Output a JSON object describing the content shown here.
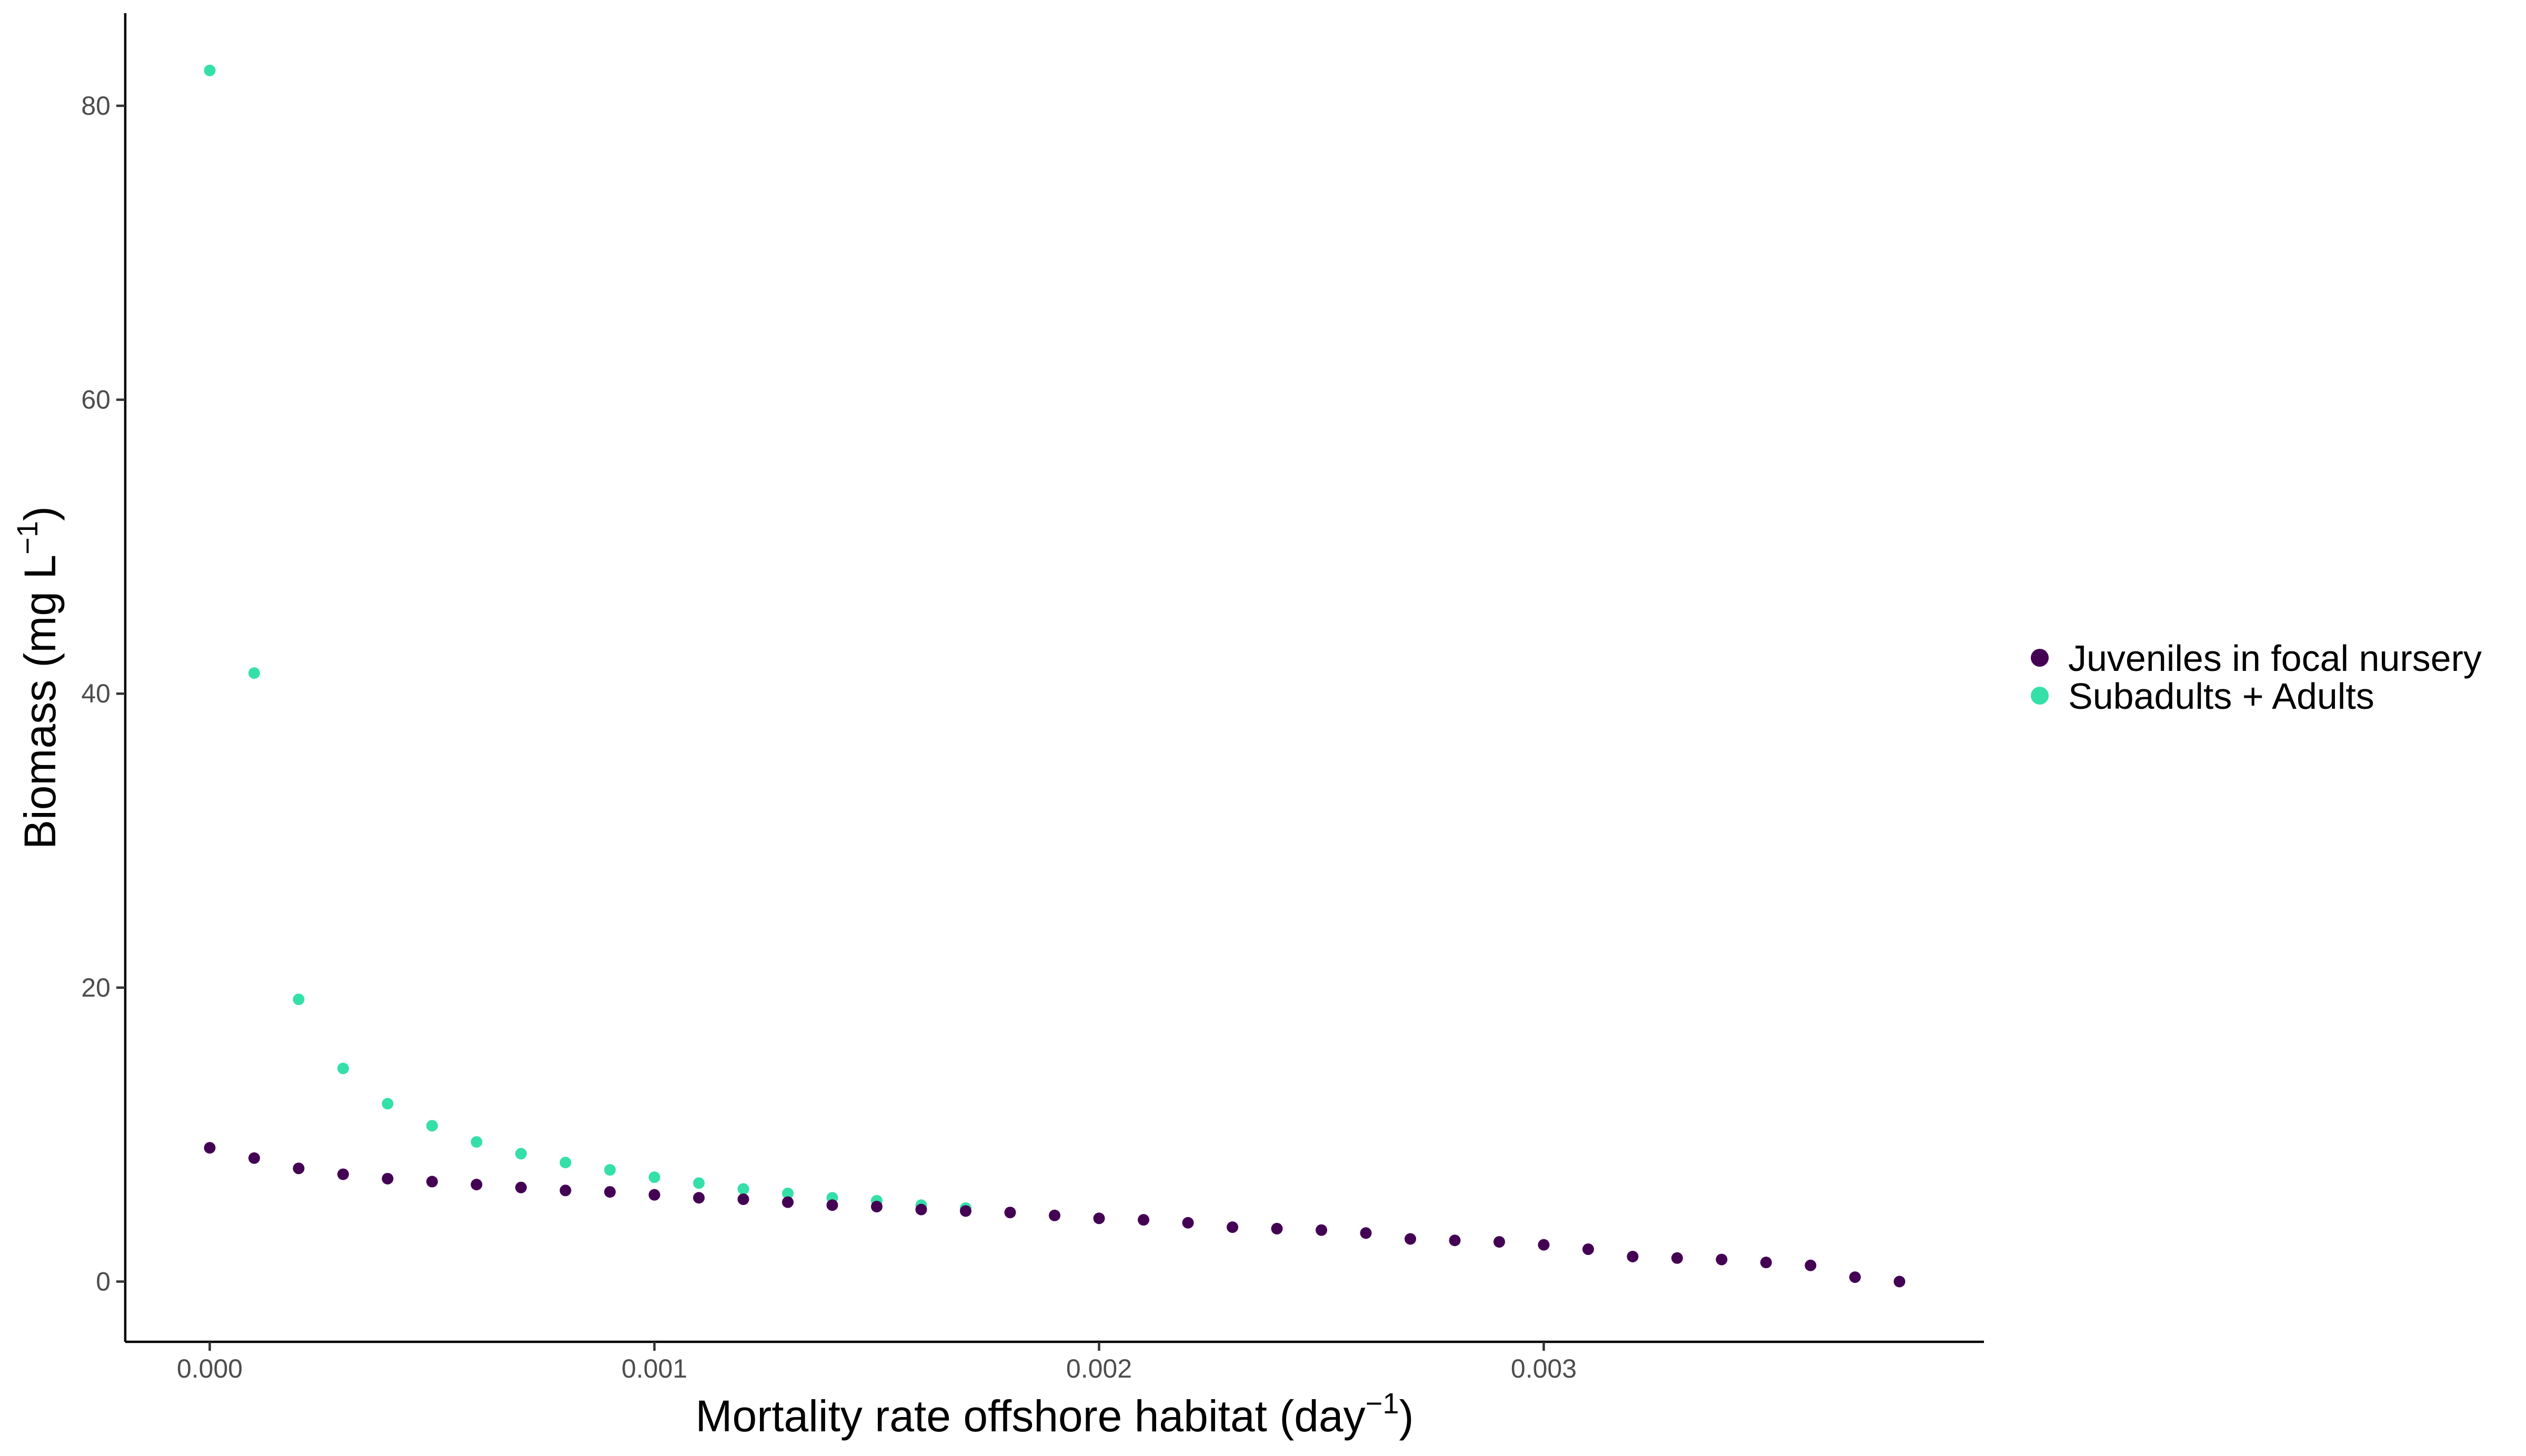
{
  "chart_data": {
    "type": "scatter",
    "xlabel": {
      "base": "Mortality rate offshore habitat (day",
      "sup": "−1",
      "close": ")"
    },
    "ylabel": {
      "base": "Biomass (mg L",
      "sup": "−1",
      "close": ")"
    },
    "xlim": [
      -0.00019,
      0.00399
    ],
    "ylim": [
      -4.1,
      86.3
    ],
    "xticks": [
      0.0,
      0.001,
      0.002,
      0.003
    ],
    "xtick_labels": [
      "0.000",
      "0.001",
      "0.002",
      "0.003"
    ],
    "yticks": [
      0,
      20,
      40,
      60,
      80
    ],
    "ytick_labels": [
      "0",
      "20",
      "40",
      "60",
      "80"
    ],
    "grid": false,
    "legend_position": "right",
    "series": [
      {
        "name": "Juveniles in focal nursery",
        "color": "#440154",
        "x": [
          0.0,
          0.0001,
          0.0002,
          0.0003,
          0.0004,
          0.0005,
          0.0006,
          0.0007,
          0.0008,
          0.0009,
          0.001,
          0.0011,
          0.0012,
          0.0013,
          0.0014,
          0.0015,
          0.0016,
          0.0017,
          0.0018,
          0.0019,
          0.002,
          0.0021,
          0.0022,
          0.0023,
          0.0024,
          0.0025,
          0.0026,
          0.0027,
          0.0028,
          0.0029,
          0.003,
          0.0031,
          0.0032,
          0.0033,
          0.0034,
          0.0035,
          0.0036,
          0.0037,
          0.0038
        ],
        "y": [
          9.1,
          8.4,
          7.7,
          7.3,
          7.0,
          6.8,
          6.6,
          6.4,
          6.2,
          6.1,
          5.9,
          5.7,
          5.6,
          5.4,
          5.2,
          5.1,
          4.9,
          4.8,
          4.7,
          4.5,
          4.3,
          4.2,
          4.0,
          3.7,
          3.6,
          3.5,
          3.3,
          2.9,
          2.8,
          2.7,
          2.5,
          2.2,
          1.7,
          1.6,
          1.5,
          1.3,
          1.1,
          0.3,
          0.0
        ]
      },
      {
        "name": "Subadults + Adults",
        "color": "#35e0a8",
        "x": [
          0.0,
          0.0001,
          0.0002,
          0.0003,
          0.0004,
          0.0005,
          0.0006,
          0.0007,
          0.0008,
          0.0009,
          0.001,
          0.0011,
          0.0012,
          0.0013,
          0.0014,
          0.0015,
          0.0016,
          0.0017
        ],
        "y": [
          82.4,
          41.4,
          19.2,
          14.5,
          12.1,
          10.6,
          9.5,
          8.7,
          8.1,
          7.6,
          7.1,
          6.7,
          6.3,
          6.0,
          5.7,
          5.5,
          5.2,
          5.0
        ]
      }
    ]
  }
}
